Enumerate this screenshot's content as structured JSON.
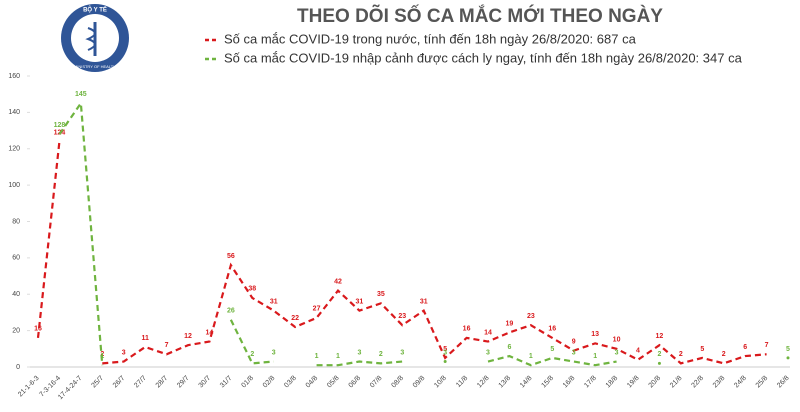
{
  "header": {
    "logo_top": "BỘ Y TẾ",
    "logo_bottom": "MINISTRY OF HEALTH"
  },
  "chart_data": {
    "type": "line",
    "title": "THEO DÕI SỐ CA MẮC MỚI THEO NGÀY",
    "categories": [
      "21-1-6-3",
      "7-3-16-4",
      "17-4-24-7",
      "25/7",
      "26/7",
      "27/7",
      "28/7",
      "29/7",
      "30/7",
      "31/7",
      "01/8",
      "02/8",
      "03/8",
      "04/8",
      "05/8",
      "06/8",
      "07/8",
      "08/8",
      "09/8",
      "10/8",
      "11/8",
      "12/8",
      "13/8",
      "14/8",
      "15/8",
      "16/8",
      "17/8",
      "18/8",
      "19/8",
      "20/8",
      "21/8",
      "22/8",
      "23/8",
      "24/8",
      "25/8",
      "26/8"
    ],
    "series": [
      {
        "name": "Số ca mắc COVID-19 trong nước, tính đến 18h ngày 26/8/2020: 687 ca",
        "color": "#d9191c",
        "values": [
          16,
          124,
          null,
          2,
          3,
          11,
          7,
          12,
          14,
          56,
          38,
          31,
          22,
          27,
          42,
          31,
          35,
          23,
          31,
          5,
          16,
          14,
          19,
          23,
          16,
          9,
          13,
          10,
          4,
          12,
          2,
          5,
          2,
          6,
          7,
          null
        ]
      },
      {
        "name": "Số ca mắc COVID-19 nhập cảnh được cách ly ngay, tính đến 18h ngày 26/8/2020: 347 ca",
        "color": "#6fb43f",
        "values": [
          null,
          128,
          145,
          1,
          null,
          null,
          null,
          null,
          null,
          26,
          2,
          3,
          null,
          1,
          1,
          3,
          2,
          3,
          null,
          3,
          null,
          3,
          6,
          1,
          5,
          3,
          1,
          3,
          null,
          2,
          null,
          null,
          null,
          null,
          null,
          5
        ]
      }
    ],
    "ylim": [
      0,
      160
    ],
    "yticks": [
      0,
      20,
      40,
      60,
      80,
      100,
      120,
      140,
      160
    ],
    "grid": false,
    "line_style": "dashed"
  }
}
